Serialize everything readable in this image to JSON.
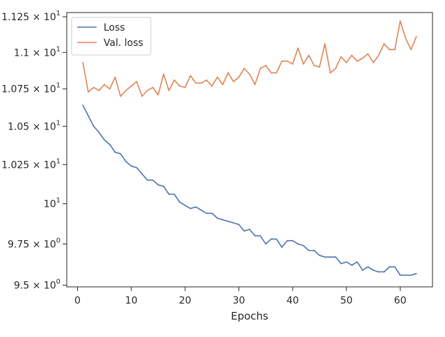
{
  "chart_data": {
    "type": "line",
    "title": "",
    "xlabel": "Epochs",
    "ylabel": "",
    "y_scale": "log",
    "xlim": [
      -2,
      66
    ],
    "ylim": [
      9.49,
      11.28
    ],
    "x_ticks": [
      {
        "value": 0,
        "label": "0"
      },
      {
        "value": 10,
        "label": "10"
      },
      {
        "value": 20,
        "label": "20"
      },
      {
        "value": 30,
        "label": "30"
      },
      {
        "value": 40,
        "label": "40"
      },
      {
        "value": 50,
        "label": "50"
      },
      {
        "value": 60,
        "label": "60"
      }
    ],
    "y_ticks": [
      {
        "value": 9.5,
        "mantissa": "9.5",
        "label": "9.5 × 10⁰"
      },
      {
        "value": 9.75,
        "mantissa": "9.75",
        "label": "9.75 × 10⁰"
      },
      {
        "value": 10,
        "mantissa": "",
        "label": "10¹"
      },
      {
        "value": 10.25,
        "mantissa": "1.025",
        "label": "1.025 × 10¹"
      },
      {
        "value": 10.5,
        "mantissa": "1.05",
        "label": "1.05 × 10¹"
      },
      {
        "value": 10.75,
        "mantissa": "1.075",
        "label": "1.075 × 10¹"
      },
      {
        "value": 11.0,
        "mantissa": "1.1",
        "label": "1.1 × 10¹"
      },
      {
        "value": 11.25,
        "mantissa": "1.125",
        "label": "1.125 × 10¹"
      }
    ],
    "grid": false,
    "legend_position": "top-left",
    "x": [
      1,
      2,
      3,
      4,
      5,
      6,
      7,
      8,
      9,
      10,
      11,
      12,
      13,
      14,
      15,
      16,
      17,
      18,
      19,
      20,
      21,
      22,
      23,
      24,
      25,
      26,
      27,
      28,
      29,
      30,
      31,
      32,
      33,
      34,
      35,
      36,
      37,
      38,
      39,
      40,
      41,
      42,
      43,
      44,
      45,
      46,
      47,
      48,
      49,
      50,
      51,
      52,
      53,
      54,
      55,
      56,
      57,
      58,
      59,
      60,
      61,
      62,
      63
    ],
    "series": [
      {
        "name": "Loss",
        "color": "#4c72b0",
        "values": [
          10.64,
          10.57,
          10.5,
          10.46,
          10.41,
          10.38,
          10.33,
          10.32,
          10.27,
          10.24,
          10.23,
          10.19,
          10.15,
          10.15,
          10.12,
          10.11,
          10.06,
          10.06,
          10.01,
          9.99,
          9.97,
          9.98,
          9.96,
          9.94,
          9.94,
          9.91,
          9.9,
          9.89,
          9.88,
          9.87,
          9.83,
          9.84,
          9.8,
          9.8,
          9.75,
          9.78,
          9.78,
          9.73,
          9.77,
          9.77,
          9.75,
          9.74,
          9.71,
          9.71,
          9.68,
          9.67,
          9.67,
          9.67,
          9.63,
          9.64,
          9.62,
          9.64,
          9.59,
          9.61,
          9.59,
          9.58,
          9.58,
          9.61,
          9.61,
          9.56,
          9.56,
          9.56,
          9.57
        ]
      },
      {
        "name": "Val. loss",
        "color": "#dd8452",
        "values": [
          10.93,
          10.73,
          10.76,
          10.74,
          10.78,
          10.75,
          10.83,
          10.7,
          10.74,
          10.77,
          10.8,
          10.7,
          10.74,
          10.76,
          10.71,
          10.85,
          10.74,
          10.81,
          10.77,
          10.76,
          10.84,
          10.79,
          10.79,
          10.81,
          10.77,
          10.83,
          10.78,
          10.86,
          10.8,
          10.83,
          10.89,
          10.85,
          10.78,
          10.89,
          10.91,
          10.86,
          10.86,
          10.94,
          10.94,
          10.92,
          11.03,
          10.92,
          10.98,
          10.91,
          10.9,
          11.06,
          10.86,
          10.89,
          10.97,
          10.93,
          10.98,
          10.94,
          10.96,
          10.99,
          10.93,
          10.98,
          11.06,
          11.02,
          11.02,
          11.22,
          11.1,
          11.02,
          11.11
        ]
      }
    ]
  }
}
